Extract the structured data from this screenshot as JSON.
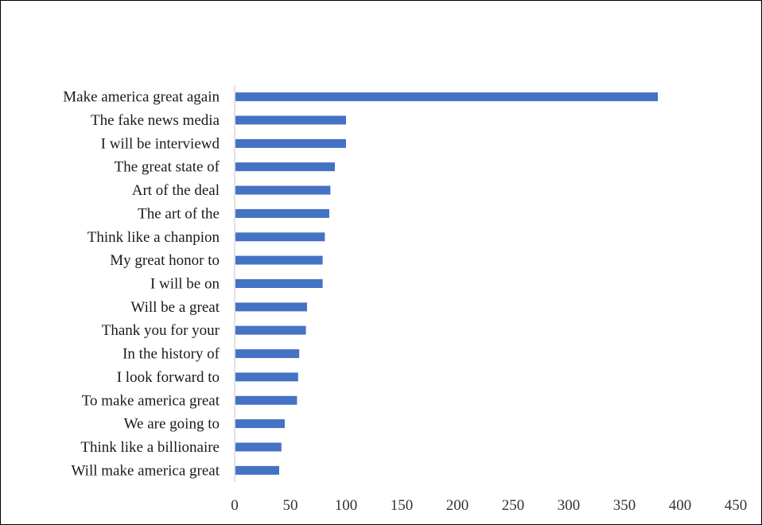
{
  "chart_data": {
    "type": "bar",
    "orientation": "horizontal",
    "categories": [
      "Make america great again",
      "The fake news media",
      "I will be interviewd ",
      "The great state of",
      "Art of the deal",
      "The art of the",
      "Think like a chanpion",
      "My great honor to",
      "I will be on",
      "Will be a great",
      "Thank you for your",
      "In the history of",
      "I look forward to",
      "To make america great",
      "We are going to ",
      "Think like a billionaire",
      "Will make america great"
    ],
    "values": [
      380,
      100,
      100,
      90,
      86,
      85,
      81,
      79,
      79,
      65,
      64,
      58,
      57,
      56,
      45,
      42,
      40
    ],
    "xlim": [
      0,
      450
    ],
    "xticks": [
      "0",
      "50",
      "100",
      "150",
      "200",
      "250",
      "300",
      "350",
      "400",
      "450"
    ],
    "grid": false,
    "bar_color": "#4472C4",
    "axis_color": "#d9d9d9"
  }
}
